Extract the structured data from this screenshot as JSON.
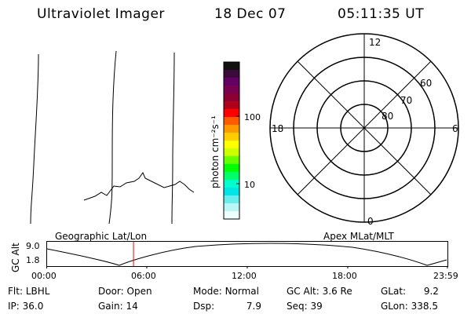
{
  "header": {
    "title": "Ultraviolet Imager",
    "date": "18 Dec 07",
    "time": "05:11:35 UT"
  },
  "colorbar": {
    "unit_label": "photon cm⁻²s⁻¹",
    "ticks": [
      "100",
      "10"
    ],
    "colors": [
      "#111111",
      "#3a0a3a",
      "#640064",
      "#7a0050",
      "#8b0032",
      "#b0001a",
      "#ff0000",
      "#ff5a00",
      "#ff9900",
      "#ffcc00",
      "#ffff00",
      "#ccff00",
      "#66ff00",
      "#00ff00",
      "#00ff66",
      "#00ffcc",
      "#00e6e6",
      "#66eeee",
      "#bbf6f6",
      "#eeffff"
    ]
  },
  "polar_grid": {
    "mlt_labels": {
      "top": "12",
      "left": "18",
      "right": "6",
      "bottom": "0"
    },
    "lat_labels": [
      "60",
      "70",
      "80"
    ]
  },
  "orbit_panel": {
    "left_title": "Geographic Lat/Lon",
    "right_title": "Apex MLat/MLT",
    "y_axis_label": "GC Alt",
    "y_ticks": [
      "9.0",
      "1.8"
    ],
    "x_ticks": [
      "00:00",
      "06:00",
      "12:00",
      "18:00",
      "23:59"
    ],
    "current_time_fraction": 0.2164
  },
  "status": {
    "row1": [
      {
        "key": "Flt:",
        "value": "LBHL"
      },
      {
        "key": "Door:",
        "value": "Open"
      },
      {
        "key": "Mode:",
        "value": "Normal"
      },
      {
        "key": "GC Alt:",
        "value": "3.6 Re"
      },
      {
        "key": "GLat:",
        "value": "9.2"
      }
    ],
    "row2": [
      {
        "key": "IP:",
        "value": "36.0"
      },
      {
        "key": "Gain:",
        "value": "14"
      },
      {
        "key": "Dsp:",
        "value": "7.9"
      },
      {
        "key": "Seq:",
        "value": "39"
      },
      {
        "key": "GLon:",
        "value": "338.5"
      }
    ]
  }
}
